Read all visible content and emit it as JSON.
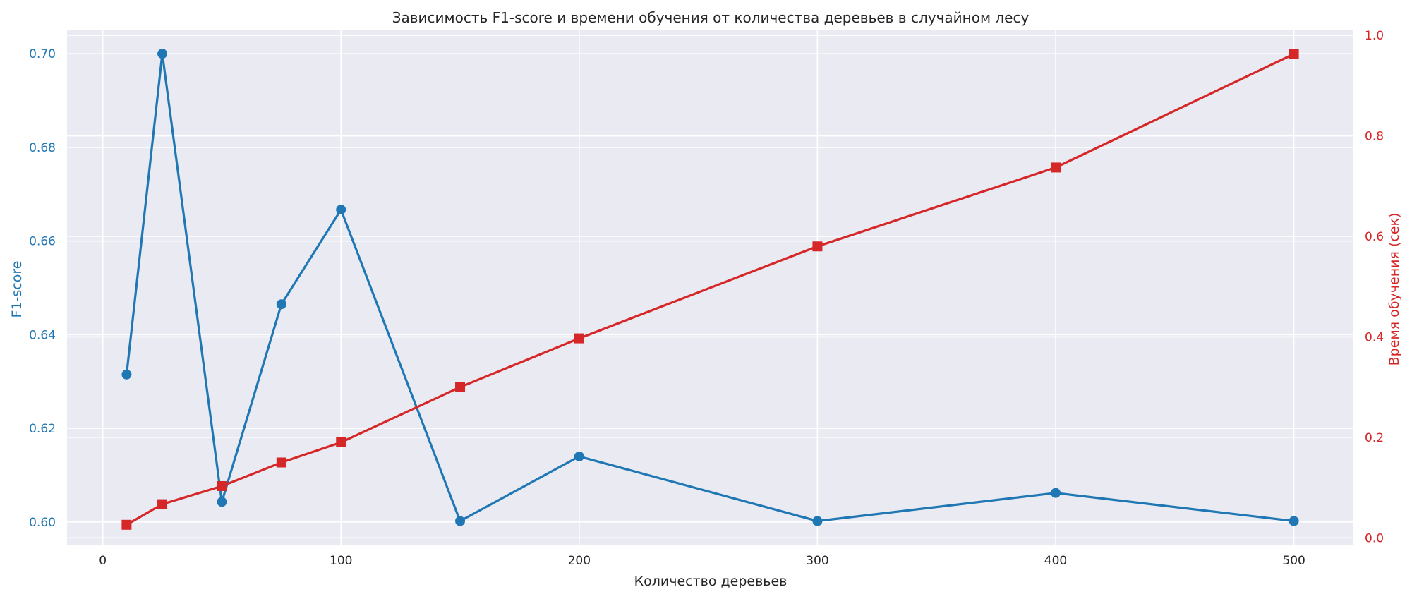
{
  "chart_data": {
    "type": "line",
    "title": "Зависимость F1-score и времени обучения от количества деревьев в случайном лесу",
    "xlabel": "Количество деревьев",
    "ylabel_left": "F1-score",
    "ylabel_right": "Время обучения (сек)",
    "x": [
      10,
      25,
      50,
      75,
      100,
      150,
      200,
      300,
      400,
      500
    ],
    "xlim": [
      -15,
      525
    ],
    "ylim_left": [
      0.595,
      0.705
    ],
    "ylim_right": [
      -0.015,
      1.01
    ],
    "xticks": [
      0,
      100,
      200,
      300,
      400,
      500
    ],
    "yticks_left": [
      0.6,
      0.62,
      0.64,
      0.66,
      0.68,
      0.7
    ],
    "yticks_right": [
      0.0,
      0.2,
      0.4,
      0.6,
      0.8,
      1.0
    ],
    "grid": true,
    "series": [
      {
        "name": "F1-score",
        "axis": "left",
        "color": "#1f77b4",
        "marker": "circle",
        "values": [
          0.6315,
          0.7,
          0.6043,
          0.6465,
          0.6667,
          0.6002,
          0.614,
          0.6002,
          0.6062,
          0.6002
        ]
      },
      {
        "name": "Время обучения (сек)",
        "axis": "right",
        "color": "#d62728",
        "marker": "square",
        "values": [
          0.026,
          0.067,
          0.103,
          0.15,
          0.19,
          0.3,
          0.397,
          0.58,
          0.737,
          0.963
        ]
      }
    ]
  },
  "colors": {
    "background": "#eaeaf2",
    "grid": "#ffffff",
    "left_axis": "#1f77b4",
    "right_axis": "#d62728",
    "text": "#262626"
  }
}
